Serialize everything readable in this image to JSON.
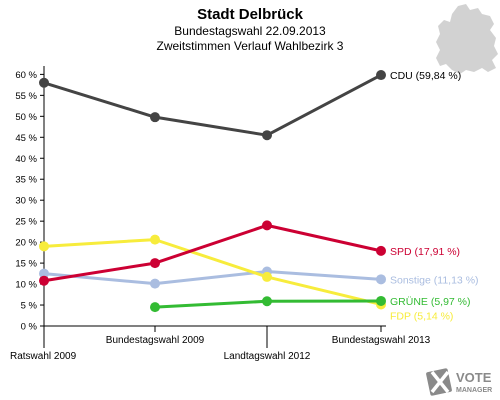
{
  "chart_data": {
    "type": "line",
    "title": "Stadt Delbrück",
    "subtitle_lines": [
      "Bundestagswahl 22.09.2013",
      "Zweitstimmen Verlauf Wahlbezirk 3"
    ],
    "categories": [
      "Ratswahl 2009",
      "Bundestagswahl 2009",
      "Landtagswahl 2012",
      "Bundestagswahl 2013"
    ],
    "ylim": [
      0,
      62
    ],
    "yticks": [
      "0 %",
      "5 %",
      "10 %",
      "15 %",
      "20 %",
      "25 %",
      "30 %",
      "35 %",
      "40 %",
      "45 %",
      "50 %",
      "55 %",
      "60 %"
    ],
    "ytick_values": [
      0,
      5,
      10,
      15,
      20,
      25,
      30,
      35,
      40,
      45,
      50,
      55,
      60
    ],
    "series": [
      {
        "name": "Sonstige",
        "end_label": "Sonstige (11,13 %)",
        "color": "#aabde0",
        "values": [
          12.5,
          10.1,
          13.0,
          11.13
        ]
      },
      {
        "name": "FDP",
        "end_label": "FDP (5,14 %)",
        "color": "#f7ec3c",
        "values": [
          19.0,
          20.6,
          11.7,
          5.14
        ]
      },
      {
        "name": "SPD",
        "end_label": "SPD (17,91 %)",
        "color": "#cc0033",
        "values": [
          10.8,
          15.0,
          24.0,
          17.91
        ]
      },
      {
        "name": "GRÜNE",
        "end_label": "GRÜNE (5,97 %)",
        "color": "#33bb33",
        "values": [
          null,
          4.5,
          5.9,
          5.97
        ]
      },
      {
        "name": "CDU",
        "end_label": "CDU (59,84 %)",
        "color": "#444444",
        "values": [
          58.0,
          49.8,
          45.5,
          59.84
        ]
      }
    ],
    "grid": false,
    "legend": "end-of-line labels"
  },
  "logo": {
    "line1": "VOTE",
    "line2": "MANAGER"
  },
  "colors": {
    "map": "#d2d2d2",
    "axis": "#000000",
    "plot_background": "#ffffff"
  }
}
